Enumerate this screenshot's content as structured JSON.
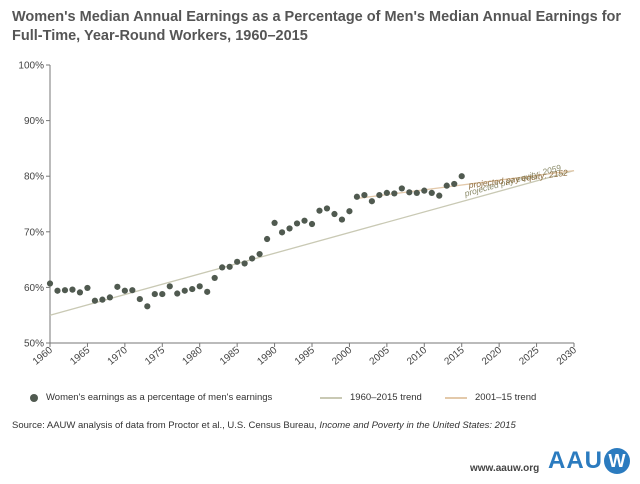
{
  "header": {
    "title_line1": "Women's Median Annual Earnings as a Percentage of Men's Median Annual Earnings for",
    "title_line2": "Full-Time, Year-Round Workers, 1960–2015"
  },
  "legend": {
    "points_label": "Women's earnings as a percentage of men's earnings",
    "trend_full_label": "1960–2015 trend",
    "trend_recent_label": "2001–15 trend"
  },
  "footer": {
    "source_prefix": "Source: AAUW analysis of data from Proctor et al., U.S. Census Bureau, ",
    "source_title": "Income and Poverty in the United States: 2015",
    "url": "www.aauw.org",
    "logo_text": "AAU",
    "logo_w": "W"
  },
  "colors": {
    "points": "#505a50",
    "trend_full": "#c9c9b4",
    "trend_recent": "#e3c9aa",
    "annotation_full": "#8a8a68",
    "annotation_recent": "#8a6a3a",
    "axis": "#777777",
    "logo": "#2b7bbf"
  },
  "chart_data": {
    "type": "scatter",
    "x_ticks": [
      1960,
      1965,
      1970,
      1975,
      1980,
      1985,
      1990,
      1995,
      2000,
      2005,
      2010,
      2015,
      2020,
      2025,
      2030
    ],
    "y_ticks": [
      "50%",
      "60%",
      "70%",
      "80%",
      "90%",
      "100%"
    ],
    "xlim": [
      1960,
      2030
    ],
    "ylim": [
      50,
      100
    ],
    "grid": false,
    "legend_position": "bottom",
    "series": [
      {
        "name": "Women's earnings as a percentage of men's earnings",
        "x": [
          1960,
          1961,
          1962,
          1963,
          1964,
          1965,
          1966,
          1967,
          1968,
          1969,
          1970,
          1971,
          1972,
          1973,
          1974,
          1975,
          1976,
          1977,
          1978,
          1979,
          1980,
          1981,
          1982,
          1983,
          1984,
          1985,
          1986,
          1987,
          1988,
          1989,
          1990,
          1991,
          1992,
          1993,
          1994,
          1995,
          1996,
          1997,
          1998,
          1999,
          2000,
          2001,
          2002,
          2003,
          2004,
          2005,
          2006,
          2007,
          2008,
          2009,
          2010,
          2011,
          2012,
          2013,
          2014,
          2015
        ],
        "y": [
          60.7,
          59.4,
          59.5,
          59.6,
          59.1,
          59.9,
          57.6,
          57.8,
          58.2,
          60.1,
          59.4,
          59.5,
          57.9,
          56.6,
          58.8,
          58.8,
          60.2,
          58.9,
          59.4,
          59.7,
          60.2,
          59.2,
          61.7,
          63.6,
          63.7,
          64.6,
          64.3,
          65.2,
          66.0,
          68.7,
          71.6,
          69.9,
          70.6,
          71.5,
          72.0,
          71.4,
          73.8,
          74.2,
          73.2,
          72.2,
          73.7,
          76.3,
          76.6,
          75.5,
          76.6,
          77.0,
          76.9,
          77.8,
          77.1,
          77.0,
          77.4,
          77.0,
          76.5,
          78.3,
          78.6,
          80.0
        ]
      },
      {
        "name": "1960–2015 trend",
        "x": [
          1960,
          2030
        ],
        "y": [
          55.0,
          81.0
        ]
      },
      {
        "name": "2001–15 trend",
        "x": [
          2001,
          2030
        ],
        "y": [
          76.0,
          81.0
        ]
      }
    ],
    "annotations": [
      {
        "text": "projected pay equity: 2059",
        "series": "1960–2015 trend"
      },
      {
        "text": "projected pay equity: 2152",
        "series": "2001–15 trend"
      }
    ]
  }
}
